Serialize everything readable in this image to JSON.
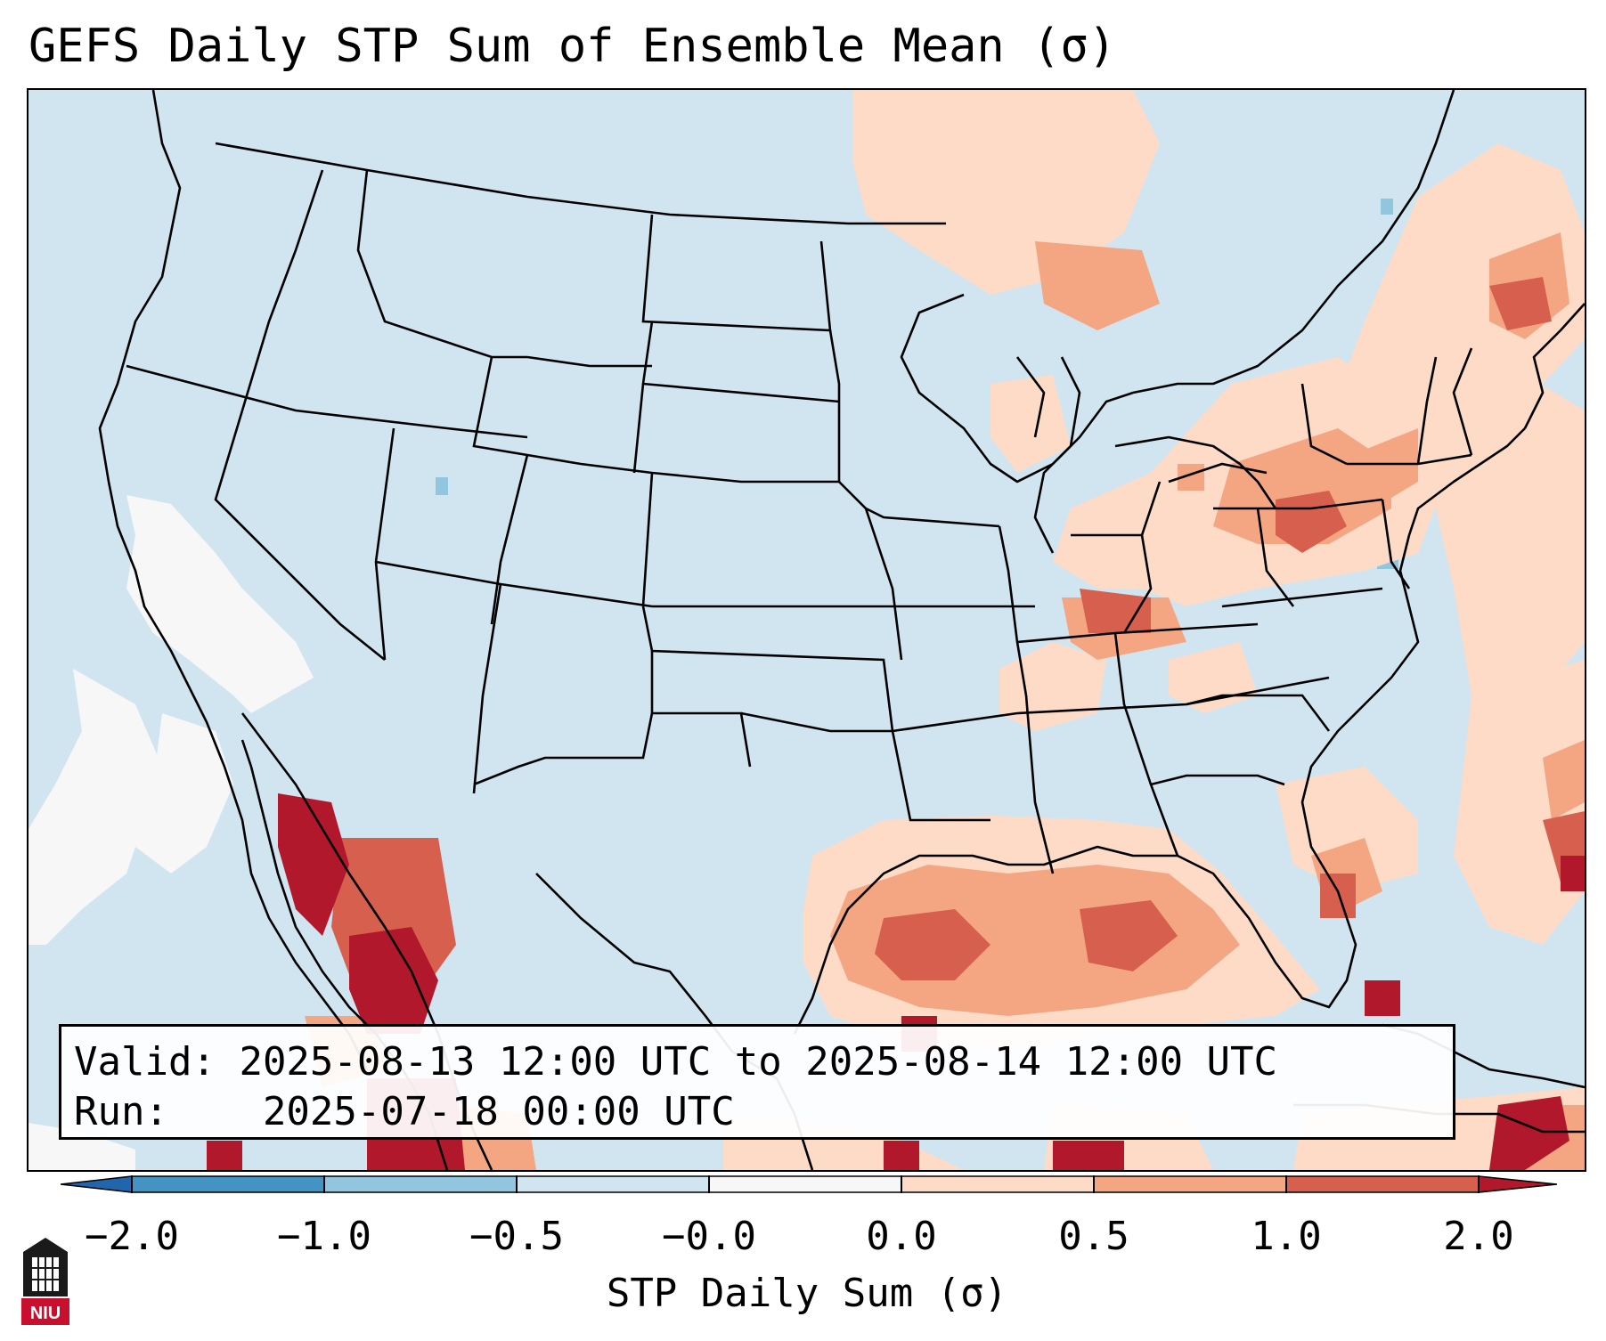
{
  "title": "GEFS Daily STP Sum of Ensemble Mean (σ)",
  "info": {
    "valid_label": "Valid:",
    "valid_value": "2025-08-13 12:00 UTC to 2025-08-14 12:00 UTC",
    "run_label": "Run:",
    "run_value": "2025-07-18 00:00 UTC"
  },
  "colorbar": {
    "label": "STP Daily Sum (σ)",
    "ticks": [
      "−2.0",
      "−1.0",
      "−0.5",
      "−0.0",
      "0.0",
      "0.5",
      "1.0",
      "2.0"
    ],
    "colors": [
      "#2166ac",
      "#4393c3",
      "#92c5de",
      "#d1e5f0",
      "#f7f7f7",
      "#fddbc7",
      "#f4a582",
      "#d6604d",
      "#b2182b"
    ]
  },
  "map": {
    "background_color": "#d1e5f0",
    "anomaly_areas": [
      "Gulf of Mexico",
      "Northeast US",
      "Mexico Pacific coast",
      "Ohio Valley",
      "Tennessee"
    ],
    "low_areas": [
      "Eastern Pacific off California"
    ]
  },
  "logo": {
    "text": "NIU",
    "color": "#c8102e"
  }
}
